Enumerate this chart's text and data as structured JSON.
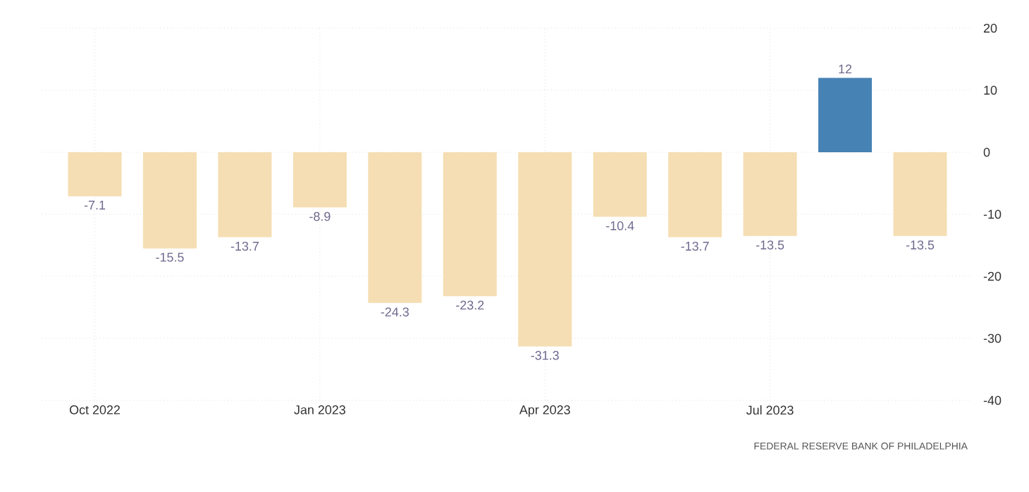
{
  "chart_data": {
    "type": "bar",
    "categories": [
      "Oct 2022",
      null,
      null,
      "Jan 2023",
      null,
      null,
      "Apr 2023",
      null,
      null,
      "Jul 2023",
      null,
      null
    ],
    "values": [
      -7.1,
      -15.5,
      -13.7,
      -8.9,
      -24.3,
      -23.2,
      -31.3,
      -10.4,
      -13.7,
      -13.5,
      12,
      -13.5
    ],
    "value_labels": [
      "-7.1",
      "-15.5",
      "-13.7",
      "-8.9",
      "-24.3",
      "-23.2",
      "-31.3",
      "-10.4",
      "-13.7",
      "-13.5",
      "12",
      "-13.5"
    ],
    "colors": [
      "#f5deb3",
      "#f5deb3",
      "#f5deb3",
      "#f5deb3",
      "#f5deb3",
      "#f5deb3",
      "#f5deb3",
      "#f5deb3",
      "#f5deb3",
      "#f5deb3",
      "#4682b4",
      "#f5deb3"
    ],
    "ylim": [
      -40,
      20
    ],
    "yticks": [
      -40,
      -30,
      -20,
      -10,
      0,
      10,
      20
    ],
    "grid": true,
    "annotations": [
      "FEDERAL RESERVE BANK OF PHILADELPHIA"
    ]
  }
}
